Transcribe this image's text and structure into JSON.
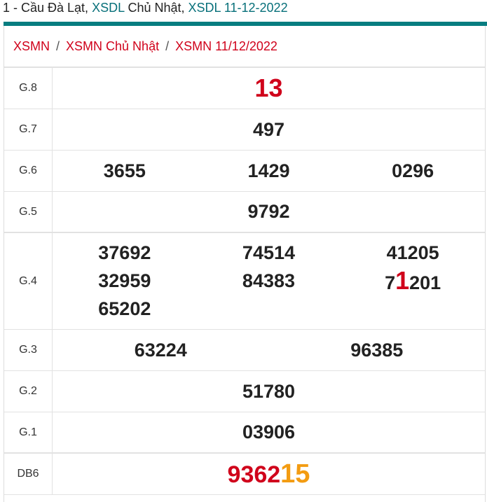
{
  "title": {
    "part1": "1 - Cầu Đà Lạt, ",
    "part2": "XSDL",
    "part3": " Chủ Nhật, ",
    "part4": "XSDL 11-12-2022"
  },
  "breadcrumb": [
    "XSMN",
    "XSMN Chủ Nhật",
    "XSMN 11/12/2022"
  ],
  "breadcrumb_sep": "/",
  "prizes": {
    "g8": {
      "label": "G.8",
      "value": "13"
    },
    "g7": {
      "label": "G.7",
      "value": "497"
    },
    "g6": {
      "label": "G.6",
      "values": [
        "3655",
        "1429",
        "0296"
      ]
    },
    "g5": {
      "label": "G.5",
      "value": "9792"
    },
    "g4": {
      "label": "G.4",
      "values": [
        "37692",
        "32959",
        "65202",
        "74514",
        "84383",
        "41205"
      ],
      "special": {
        "pre": "7",
        "hl": "1",
        "post": "201"
      }
    },
    "g3": {
      "label": "G.3",
      "values": [
        "63224",
        "96385"
      ]
    },
    "g2": {
      "label": "G.2",
      "value": "51780"
    },
    "g1": {
      "label": "G.1",
      "value": "03906"
    },
    "db6": {
      "label": "DB6",
      "main": "9362",
      "tail": "15"
    }
  },
  "colors": {
    "teal": "#077d80",
    "red": "#d0021b",
    "orange": "#f39c12"
  }
}
